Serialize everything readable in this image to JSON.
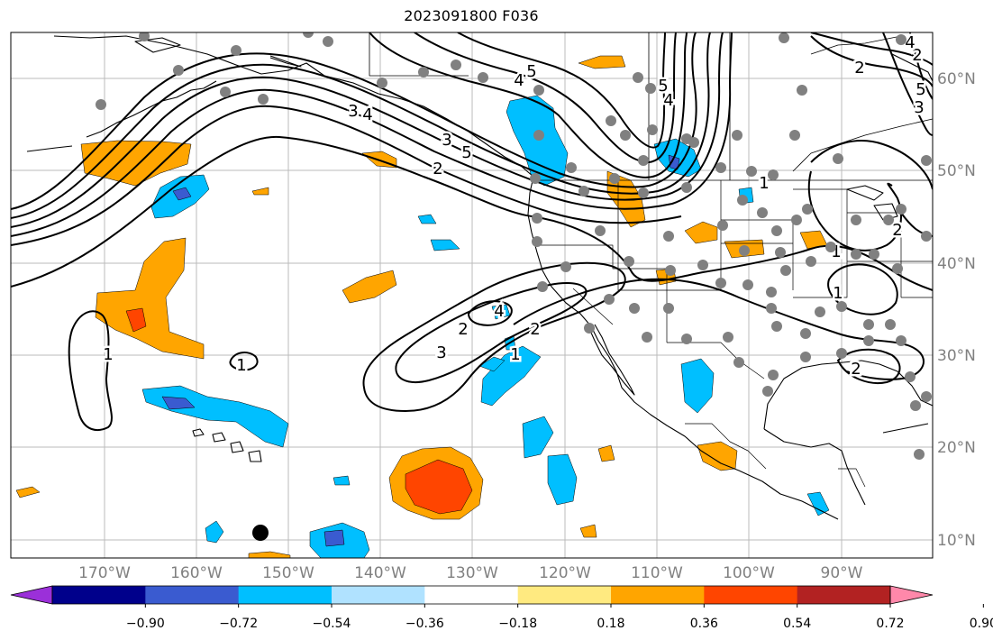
{
  "title": "2023091800 F036",
  "lon_labels": [
    "170°W",
    "160°W",
    "150°W",
    "140°W",
    "130°W",
    "120°W",
    "110°W",
    "100°W",
    "90°W"
  ],
  "lat_labels": [
    "60°N",
    "50°N",
    "40°N",
    "30°N",
    "20°N",
    "10°N"
  ],
  "contour_labels": [
    "5",
    "4",
    "5",
    "4",
    "3",
    "2",
    "5",
    "4",
    "2",
    "2",
    "3",
    "4",
    "2",
    "1",
    "1",
    "2",
    "2",
    "1",
    "1",
    "1",
    "1",
    "2",
    "3",
    "5",
    "4",
    "3"
  ],
  "colorbar": {
    "ticks": [
      "−0.90",
      "−0.72",
      "−0.54",
      "−0.36",
      "−0.18",
      "0.18",
      "0.36",
      "0.54",
      "0.72",
      "0.90"
    ],
    "colors": [
      "#9b30d9",
      "#00008b",
      "#3a5bd0",
      "#00bfff",
      "#b0e2ff",
      "#ffffff",
      "#ffea80",
      "#ffa500",
      "#ff4500",
      "#b22222",
      "#ff88aa"
    ]
  },
  "colors": {
    "land": "#000000",
    "grid": "#bbbbbb",
    "stations": "#808080",
    "marker": "#000000",
    "positive_fill": "#ffa500",
    "positive_core": "#ff4500",
    "negative_fill": "#00bfff",
    "negative_core": "#3a5bd0"
  }
}
